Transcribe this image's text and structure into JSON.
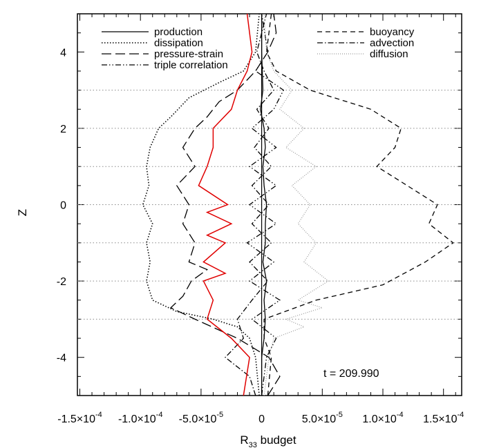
{
  "chart_data": {
    "type": "line",
    "xlabel": "R",
    "xlabel_sub": "33",
    "xlabel_suffix": " budget",
    "ylabel": "Z",
    "xlim": [
      -0.000152,
      0.000165
    ],
    "ylim": [
      -5,
      5
    ],
    "grid": false,
    "legend_placement": "top",
    "annotation": "t = 209.990",
    "x_ticks": [
      {
        "value": -0.00015,
        "label": "-1.5×10",
        "exp": "-4"
      },
      {
        "value": -0.0001,
        "label": "-1.0×10",
        "exp": "-4"
      },
      {
        "value": -5e-05,
        "label": "-5.0×10",
        "exp": "-5"
      },
      {
        "value": 0,
        "label": "0",
        "exp": ""
      },
      {
        "value": 5e-05,
        "label": "5.0×10",
        "exp": "-5"
      },
      {
        "value": 0.0001,
        "label": "1.0×10",
        "exp": "-4"
      },
      {
        "value": 0.00015,
        "label": "1.5×10",
        "exp": "-4"
      }
    ],
    "y_ticks": [
      {
        "value": -4,
        "label": "-4"
      },
      {
        "value": -2,
        "label": "-2"
      },
      {
        "value": 0,
        "label": "0"
      },
      {
        "value": 2,
        "label": "2"
      },
      {
        "value": 4,
        "label": "4"
      }
    ],
    "interface_levels": [
      -3,
      -2,
      -1,
      0,
      1,
      2,
      3
    ],
    "series": [
      {
        "name": "production",
        "style": "solid",
        "color": "#000000",
        "points": [
          [
            0,
            -5
          ],
          [
            0,
            -4
          ],
          [
            2e-06,
            -3.5
          ],
          [
            3e-06,
            -3
          ],
          [
            2e-06,
            -2.5
          ],
          [
            4e-06,
            -2
          ],
          [
            1e-06,
            -1.5
          ],
          [
            3e-06,
            -1
          ],
          [
            3e-06,
            -0.5
          ],
          [
            4e-06,
            0
          ],
          [
            2e-06,
            0.5
          ],
          [
            1e-06,
            1
          ],
          [
            3e-06,
            1.5
          ],
          [
            2e-06,
            2
          ],
          [
            -1e-06,
            2.5
          ],
          [
            1e-06,
            3
          ],
          [
            0,
            4
          ],
          [
            0,
            5
          ]
        ]
      },
      {
        "name": "dissipation",
        "style": "dotted",
        "color": "#000000",
        "points": [
          [
            -2e-06,
            -5
          ],
          [
            -5e-06,
            -4
          ],
          [
            -1e-05,
            -3.5
          ],
          [
            -2e-05,
            -3.2
          ],
          [
            -4e-05,
            -3
          ],
          [
            -7e-05,
            -2.8
          ],
          [
            -9e-05,
            -2.5
          ],
          [
            -9.5e-05,
            -2
          ],
          [
            -9.2e-05,
            -1.5
          ],
          [
            -9.5e-05,
            -1
          ],
          [
            -9e-05,
            -0.5
          ],
          [
            -9.8e-05,
            0
          ],
          [
            -9.3e-05,
            0.5
          ],
          [
            -9.5e-05,
            1
          ],
          [
            -9.2e-05,
            1.5
          ],
          [
            -8.5e-05,
            2
          ],
          [
            -7.5e-05,
            2.3
          ],
          [
            -6e-05,
            2.8
          ],
          [
            -3.5e-05,
            3.2
          ],
          [
            -1.5e-05,
            3.5
          ],
          [
            -5e-06,
            4
          ],
          [
            -2e-06,
            5
          ]
        ]
      },
      {
        "name": "pressure-strain",
        "style": "longdash",
        "color": "#000000",
        "points": [
          [
            5e-06,
            -5
          ],
          [
            1.5e-05,
            -4.5
          ],
          [
            6e-06,
            -4
          ],
          [
            -2e-05,
            -3.5
          ],
          [
            -5.5e-05,
            -3
          ],
          [
            -7.5e-05,
            -2.7
          ],
          [
            -6.5e-05,
            -2.4
          ],
          [
            -5.8e-05,
            -2
          ],
          [
            -4.5e-05,
            -1.7
          ],
          [
            -6e-05,
            -1.5
          ],
          [
            -5.5e-05,
            -1
          ],
          [
            -6.5e-05,
            -0.5
          ],
          [
            -6e-05,
            0
          ],
          [
            -7e-05,
            0.5
          ],
          [
            -5.5e-05,
            1
          ],
          [
            -6.5e-05,
            1.5
          ],
          [
            -5.5e-05,
            2
          ],
          [
            -4.5e-05,
            2.3
          ],
          [
            -3.5e-05,
            2.7
          ],
          [
            -2e-05,
            3
          ],
          [
            -5e-06,
            3.5
          ],
          [
            5e-06,
            4
          ],
          [
            1.2e-05,
            4.5
          ],
          [
            1e-05,
            5
          ]
        ]
      },
      {
        "name": "triple correlation",
        "style": "dashdotdot",
        "color": "#000000",
        "points": [
          [
            0,
            -5
          ],
          [
            4e-06,
            -4
          ],
          [
            1.2e-05,
            -3.5
          ],
          [
            -8e-06,
            -3
          ],
          [
            1.5e-05,
            -2.5
          ],
          [
            -1e-05,
            -2
          ],
          [
            1e-05,
            -1.5
          ],
          [
            -1.2e-05,
            -1
          ],
          [
            1.2e-05,
            -0.5
          ],
          [
            -1e-05,
            0
          ],
          [
            1.2e-05,
            0.5
          ],
          [
            -1e-05,
            1
          ],
          [
            1.2e-05,
            1.5
          ],
          [
            -8e-06,
            2
          ],
          [
            1e-05,
            2.5
          ],
          [
            1.8e-05,
            3
          ],
          [
            -5e-06,
            3.5
          ],
          [
            5e-06,
            4
          ],
          [
            0,
            5
          ]
        ]
      },
      {
        "name": "buoyancy",
        "style": "dashed",
        "color": "#000000",
        "points": [
          [
            5e-06,
            -5
          ],
          [
            8e-06,
            -4
          ],
          [
            2e-06,
            -3.5
          ],
          [
            2e-06,
            -3
          ],
          [
            4.5e-05,
            -2.5
          ],
          [
            0.0001,
            -2.1
          ],
          [
            0.000135,
            -1.5
          ],
          [
            0.000158,
            -1
          ],
          [
            0.000138,
            -0.5
          ],
          [
            0.000145,
            0
          ],
          [
            0.00012,
            0.5
          ],
          [
            9.5e-05,
            1
          ],
          [
            0.00011,
            1.5
          ],
          [
            0.000115,
            2
          ],
          [
            9e-05,
            2.5
          ],
          [
            4e-05,
            3
          ],
          [
            1.2e-05,
            3.5
          ],
          [
            4e-06,
            4
          ],
          [
            8e-06,
            5
          ]
        ]
      },
      {
        "name": "advection",
        "style": "dashdot",
        "color": "#000000",
        "points": [
          [
            -5e-06,
            -5
          ],
          [
            -1e-05,
            -4.5
          ],
          [
            -3e-05,
            -4
          ],
          [
            -1.5e-05,
            -3.5
          ],
          [
            -2e-05,
            -3
          ],
          [
            -8e-06,
            -2.5
          ],
          [
            5e-06,
            -2
          ],
          [
            -1e-05,
            -1.5
          ],
          [
            8e-06,
            -1
          ],
          [
            -8e-06,
            -0.5
          ],
          [
            6e-06,
            0
          ],
          [
            -8e-06,
            0.5
          ],
          [
            8e-06,
            1
          ],
          [
            -6e-06,
            1.5
          ],
          [
            6e-06,
            2
          ],
          [
            -4e-06,
            2.5
          ],
          [
            1e-05,
            3
          ],
          [
            2e-06,
            3.5
          ],
          [
            -4e-06,
            4
          ],
          [
            4e-06,
            5
          ]
        ]
      },
      {
        "name": "diffusion",
        "style": "dotted-gray",
        "color": "#999999",
        "points": [
          [
            2e-06,
            -5
          ],
          [
            6e-06,
            -4
          ],
          [
            1e-05,
            -3.5
          ],
          [
            3.5e-05,
            -3.2
          ],
          [
            2e-05,
            -3
          ],
          [
            5e-05,
            -2.7
          ],
          [
            3e-05,
            -2.5
          ],
          [
            5.5e-05,
            -2
          ],
          [
            3.5e-05,
            -1.5
          ],
          [
            4.5e-05,
            -1
          ],
          [
            3e-05,
            -0.5
          ],
          [
            4e-05,
            0
          ],
          [
            2.5e-05,
            0.5
          ],
          [
            4.5e-05,
            1
          ],
          [
            2e-05,
            1.5
          ],
          [
            3.5e-05,
            2
          ],
          [
            1.5e-05,
            2.5
          ],
          [
            2.5e-05,
            3
          ],
          [
            1e-05,
            3.5
          ],
          [
            4e-06,
            4
          ],
          [
            2e-06,
            5
          ]
        ]
      },
      {
        "name": "",
        "style": "solid-red",
        "color": "#e00000",
        "points": [
          [
            -1.5e-05,
            -5
          ],
          [
            -1e-05,
            -4
          ],
          [
            -2.5e-05,
            -3.5
          ],
          [
            -4.5e-05,
            -3
          ],
          [
            -4e-05,
            -2.5
          ],
          [
            -4.8e-05,
            -2
          ],
          [
            -3e-05,
            -1.8
          ],
          [
            -4.8e-05,
            -1.5
          ],
          [
            -3e-05,
            -1
          ],
          [
            -4.5e-05,
            -0.8
          ],
          [
            -2.5e-05,
            -0.5
          ],
          [
            -4.5e-05,
            -0.2
          ],
          [
            -2.8e-05,
            0
          ],
          [
            -5.2e-05,
            0.5
          ],
          [
            -4.5e-05,
            1
          ],
          [
            -4e-05,
            1.5
          ],
          [
            -4e-05,
            2
          ],
          [
            -2.5e-05,
            2.5
          ],
          [
            -2e-05,
            3
          ],
          [
            -1.2e-05,
            3.5
          ],
          [
            -8e-06,
            4
          ],
          [
            -1e-05,
            4.5
          ],
          [
            -1.2e-05,
            5
          ]
        ]
      }
    ]
  }
}
